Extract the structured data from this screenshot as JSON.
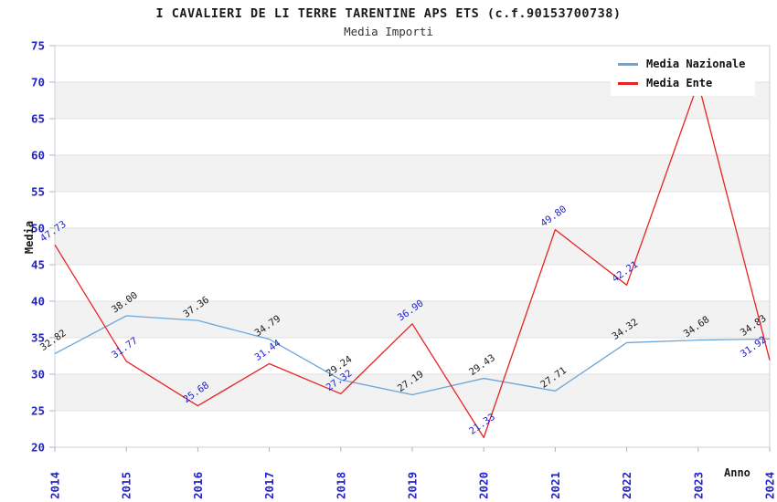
{
  "header": {
    "title": "I CAVALIERI DE LI TERRE TARENTINE APS ETS (c.f.90153700738)",
    "subtitle": "Media Importi"
  },
  "legend": {
    "items": [
      {
        "label": "Media Nazionale",
        "color": "#6ca6d9"
      },
      {
        "label": "Media Ente",
        "color": "#e82222"
      }
    ]
  },
  "axes": {
    "y_label": "Media",
    "x_label": "Anno",
    "tick_color": "#2222cc"
  },
  "chart_data": {
    "type": "line",
    "title": "I CAVALIERI DE LI TERRE TARENTINE APS ETS (c.f.90153700738)",
    "subtitle": "Media Importi",
    "xlabel": "Anno",
    "ylabel": "Media",
    "categories": [
      "2014",
      "2015",
      "2016",
      "2017",
      "2018",
      "2019",
      "2020",
      "2021",
      "2022",
      "2023",
      "2024"
    ],
    "series": [
      {
        "name": "Media Nazionale",
        "color": "#6ca6d9",
        "label_color": "#1a1a1a",
        "values": [
          32.82,
          38.0,
          37.36,
          34.79,
          29.24,
          27.19,
          29.43,
          27.71,
          34.32,
          34.68,
          34.83
        ],
        "labels": [
          "32.82",
          "38.00",
          "37.36",
          "34.79",
          "29.24",
          "27.19",
          "29.43",
          "27.71",
          "34.32",
          "34.68",
          "34.83"
        ]
      },
      {
        "name": "Media Ente",
        "color": "#e82222",
        "label_color": "#2222cc",
        "values": [
          47.73,
          31.77,
          25.68,
          31.44,
          27.32,
          36.9,
          21.33,
          49.8,
          42.21,
          69.9,
          31.92
        ],
        "labels": [
          "47.73",
          "31.77",
          "25.68",
          "31.44",
          "27.32",
          "36.90",
          "21.33",
          "49.80",
          "42.21",
          null,
          "31.92"
        ]
      }
    ],
    "ylim": [
      20,
      75
    ],
    "y_tick_step": 5,
    "y_ticks": [
      20,
      25,
      30,
      35,
      40,
      45,
      50,
      55,
      60,
      65,
      70,
      75
    ],
    "grid": "horizontal-only",
    "legend_position": "top-right",
    "band_fill": "#f2f2f2",
    "grid_color": "#e2e2e2",
    "border_color": "#ccd2d9",
    "tick_mark_color": "#aeb4ba",
    "tick_label_color": "#2222cc",
    "label_rotation_deg": -35,
    "x_tick_rotation_deg": -90
  }
}
